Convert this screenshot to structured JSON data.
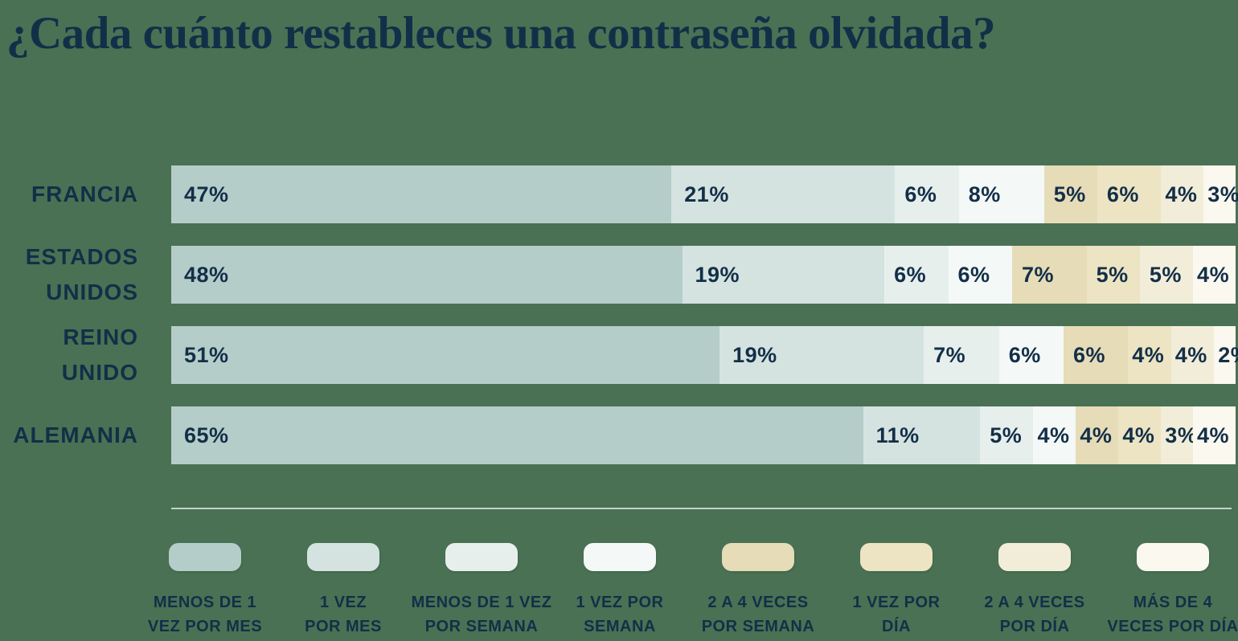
{
  "title": "¿Cada cuánto restableces una contraseña olvidada?",
  "colors": {
    "background": "#4a7153",
    "text": "#132f48",
    "divider": "#c6d1ca"
  },
  "chart_data": {
    "type": "bar",
    "orientation": "horizontal",
    "stacked": true,
    "value_unit": "%",
    "xlim": [
      0,
      100
    ],
    "grid": false,
    "legend_position": "bottom",
    "title": "¿Cada cuánto restableces una contraseña olvidada?",
    "categories": [
      "FRANCIA",
      "ESTADOS UNIDOS",
      "REINO UNIDO",
      "ALEMANIA"
    ],
    "category_lines": [
      [
        "FRANCIA"
      ],
      [
        "ESTADOS",
        "UNIDOS"
      ],
      [
        "REINO",
        "UNIDO"
      ],
      [
        "ALEMANIA"
      ]
    ],
    "series": [
      {
        "name": "MENOS DE 1 VEZ POR MES",
        "label_lines": [
          "MENOS DE 1",
          "VEZ POR MES"
        ],
        "color": "#b5cdc9",
        "values": [
          47,
          48,
          51,
          65
        ]
      },
      {
        "name": "1 VEZ POR MES",
        "label_lines": [
          "1 VEZ",
          "POR MES"
        ],
        "color": "#d5e3e0",
        "values": [
          21,
          19,
          19,
          11
        ]
      },
      {
        "name": "MENOS DE 1 VEZ POR SEMANA",
        "label_lines": [
          "MENOS DE 1 VEZ",
          "POR SEMANA"
        ],
        "color": "#e7efed",
        "values": [
          6,
          6,
          7,
          5
        ]
      },
      {
        "name": "1 VEZ POR SEMANA",
        "label_lines": [
          "1 VEZ POR",
          "SEMANA"
        ],
        "color": "#f4f8f7",
        "values": [
          8,
          6,
          6,
          4
        ]
      },
      {
        "name": "2 A 4 VECES POR SEMANA",
        "label_lines": [
          "2 A 4 VECES",
          "POR SEMANA"
        ],
        "color": "#e6dcb8",
        "values": [
          5,
          7,
          6,
          4
        ]
      },
      {
        "name": "1 VEZ POR DÍA",
        "label_lines": [
          "1 VEZ POR",
          "DÍA"
        ],
        "color": "#ece4c3",
        "values": [
          6,
          5,
          4,
          4
        ]
      },
      {
        "name": "2 A 4 VECES POR DÍA",
        "label_lines": [
          "2 A 4 VECES",
          "POR DÍA"
        ],
        "color": "#f2edd9",
        "values": [
          4,
          5,
          4,
          3
        ]
      },
      {
        "name": "MÁS DE 4 VECES POR DÍA",
        "label_lines": [
          "MÁS DE 4",
          "VECES POR DÍA"
        ],
        "color": "#faf8ef",
        "values": [
          3,
          4,
          2,
          4
        ]
      }
    ]
  }
}
